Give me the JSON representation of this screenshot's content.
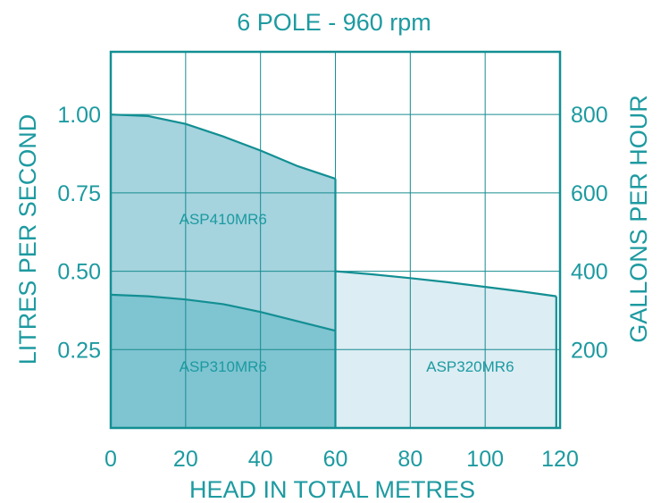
{
  "chart_data": {
    "type": "area",
    "title": "6 POLE - 960 rpm",
    "xlabel": "HEAD IN TOTAL METRES",
    "ylabel": "LITRES PER SECOND",
    "y2label": "GALLONS PER HOUR",
    "xlim": [
      0,
      120
    ],
    "ylim": [
      0,
      1.2
    ],
    "y2lim": [
      0,
      960
    ],
    "x_ticks": [
      "0",
      "20",
      "40",
      "60",
      "80",
      "100",
      "120"
    ],
    "y_ticks": [
      {
        "value": 0.25,
        "label": "0.25"
      },
      {
        "value": 0.5,
        "label": "0.50"
      },
      {
        "value": 0.75,
        "label": "0.75"
      },
      {
        "value": 1.0,
        "label": "1.00"
      }
    ],
    "y2_ticks": [
      {
        "value": 200,
        "label": "200"
      },
      {
        "value": 400,
        "label": "400"
      },
      {
        "value": 600,
        "label": "600"
      },
      {
        "value": 800,
        "label": "800"
      }
    ],
    "grid": true,
    "series": [
      {
        "name": "ASP410MR6",
        "label_at": {
          "x": 30,
          "y": 0.65
        },
        "x": [
          0,
          10,
          20,
          30,
          40,
          50,
          60
        ],
        "y": [
          1.0,
          0.995,
          0.97,
          0.93,
          0.885,
          0.835,
          0.795
        ]
      },
      {
        "name": "ASP310MR6",
        "label_at": {
          "x": 30,
          "y": 0.18
        },
        "x": [
          0,
          10,
          20,
          30,
          40,
          50,
          60
        ],
        "y": [
          0.425,
          0.42,
          0.41,
          0.395,
          0.37,
          0.34,
          0.31
        ]
      },
      {
        "name": "ASP320MR6",
        "label_at": {
          "x": 96,
          "y": 0.18
        },
        "x": [
          60,
          70,
          80,
          90,
          100,
          110,
          119
        ],
        "y": [
          0.5,
          0.49,
          0.478,
          0.465,
          0.45,
          0.435,
          0.42
        ]
      }
    ],
    "colors": {
      "axis": "#128f93",
      "frame": "#128f93",
      "grid": "#168c90",
      "text": "#1d9aa0",
      "fill_dark": "#7fc4d1",
      "fill_mid": "#a5d3de",
      "fill_light": "#dcedf3",
      "series_label": "#1b9aa0"
    }
  }
}
